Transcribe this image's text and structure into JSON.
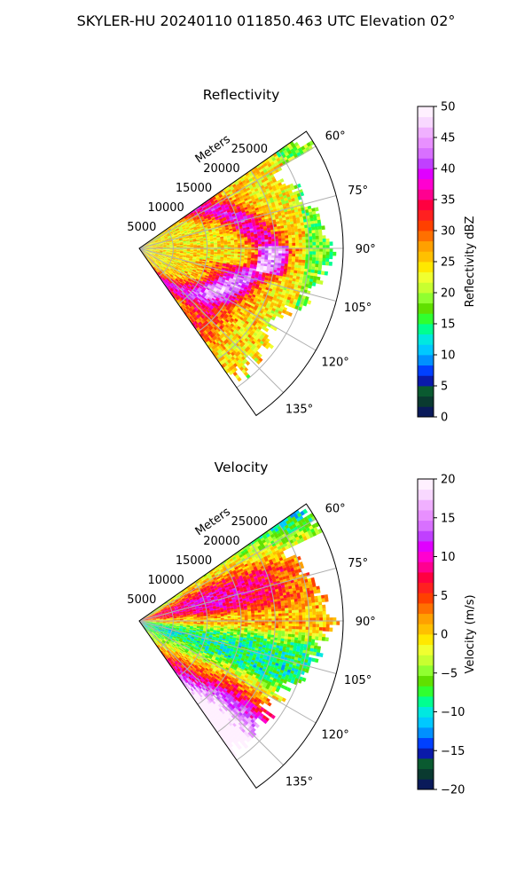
{
  "suptitle": "SKYLER-HU  20240110  011850.463 UTC Elevation 02°",
  "chart_data": [
    {
      "type": "heatmap",
      "projection": "polar sector",
      "title": "Reflectivity",
      "radial_label": "Meters",
      "radial_ticks": [
        5000,
        10000,
        15000,
        20000,
        25000
      ],
      "radial_tick_labels": [
        "5000",
        "10000",
        "15000",
        "20000",
        "25000"
      ],
      "range_max": 30000,
      "azimuth_range": [
        55,
        145
      ],
      "azimuth_ticks": [
        60,
        75,
        90,
        105,
        120,
        135
      ],
      "azimuth_tick_labels": [
        "60°",
        "75°",
        "90°",
        "105°",
        "120°",
        "135°"
      ],
      "grid": true,
      "colorbar": {
        "label": "Reflectivity dBZ",
        "range": [
          0,
          50
        ],
        "ticks": [
          0,
          5,
          10,
          15,
          20,
          25,
          30,
          35,
          40,
          45,
          50
        ],
        "tick_labels": [
          "0",
          "5",
          "10",
          "15",
          "20",
          "25",
          "30",
          "35",
          "40",
          "45",
          "50"
        ],
        "colors": [
          "#0a1a5a",
          "#0a3a30",
          "#0a5a30",
          "#0a1aaa",
          "#0040ff",
          "#0090ff",
          "#00c8ff",
          "#00e8e0",
          "#00ff90",
          "#30ff30",
          "#60e000",
          "#90ff30",
          "#c8ff30",
          "#f0ff30",
          "#ffe800",
          "#ffc000",
          "#ffa000",
          "#ff7000",
          "#ff4000",
          "#ff2020",
          "#ff0040",
          "#ff0090",
          "#ff00d0",
          "#e000ff",
          "#c040ff",
          "#d870ff",
          "#e890ff",
          "#f0b0ff",
          "#f8d8ff",
          "#fff0ff"
        ]
      }
    },
    {
      "type": "heatmap",
      "projection": "polar sector",
      "title": "Velocity",
      "radial_label": "Meters",
      "radial_ticks": [
        5000,
        10000,
        15000,
        20000,
        25000
      ],
      "radial_tick_labels": [
        "5000",
        "10000",
        "15000",
        "20000",
        "25000"
      ],
      "range_max": 30000,
      "azimuth_range": [
        55,
        145
      ],
      "azimuth_ticks": [
        60,
        75,
        90,
        105,
        120,
        135
      ],
      "azimuth_tick_labels": [
        "60°",
        "75°",
        "90°",
        "105°",
        "120°",
        "135°"
      ],
      "grid": true,
      "colorbar": {
        "label": "Velocity (m/s)",
        "range": [
          -20,
          20
        ],
        "ticks": [
          -20,
          -15,
          -10,
          -5,
          0,
          5,
          10,
          15,
          20
        ],
        "tick_labels": [
          "−20",
          "−15",
          "−10",
          "−5",
          "0",
          "5",
          "10",
          "15",
          "20"
        ],
        "colors": [
          "#0a1a5a",
          "#0a3a30",
          "#0a5a30",
          "#0a1aaa",
          "#0040ff",
          "#0090ff",
          "#00c8ff",
          "#00e8e0",
          "#00ff90",
          "#30ff30",
          "#60e000",
          "#90ff30",
          "#c8ff30",
          "#f0ff30",
          "#ffe800",
          "#ffc000",
          "#ffa000",
          "#ff7000",
          "#ff4000",
          "#ff2020",
          "#ff0040",
          "#ff0090",
          "#ff00d0",
          "#e000ff",
          "#c040ff",
          "#d870ff",
          "#e890ff",
          "#f0b0ff",
          "#f8d8ff",
          "#fff0ff"
        ]
      }
    }
  ]
}
